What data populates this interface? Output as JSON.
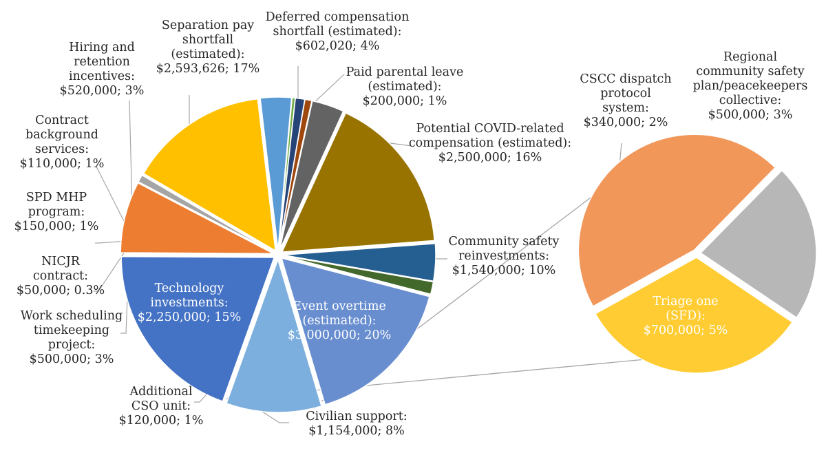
{
  "chart_data": {
    "type": "pie",
    "subtype": "pie-of-pie",
    "title": "",
    "legend": "none",
    "series": [
      {
        "name": "",
        "slices": [
          {
            "label": "Deferred compensation shortfall (estimated)",
            "value": 602020,
            "percent": 4,
            "color": "#255e91",
            "text": [
              "Deferred compensation",
              "shortfall (estimated):",
              "$602,020; 4%"
            ]
          },
          {
            "label": "Paid parental leave (estimated)",
            "value": 200000,
            "percent": 1,
            "color": "#43682b",
            "text": [
              "Paid parental leave",
              "(estimated):",
              "$200,000; 1%"
            ]
          },
          {
            "label": "Potential COVID-related compensation (estimated)",
            "value": 2500000,
            "percent": 16,
            "color": "#698ed0",
            "text": [
              "Potential COVID-related",
              "compensation (estimated):",
              "$2,500,000; 16%"
            ]
          },
          {
            "label": "Community safety reinvestments",
            "value": 1540000,
            "percent": 10,
            "color": "#7cafdd",
            "text": [
              "Community safety",
              "reinvestments:",
              "$1,540,000; 10%"
            ]
          },
          {
            "label": "Event overtime (estimated)",
            "value": 3000000,
            "percent": 20,
            "color": "#4472c4",
            "text": [
              "Event overtime",
              "(estimated):",
              "$3,000,000; 20%"
            ]
          },
          {
            "label": "Civilian support",
            "value": 1154000,
            "percent": 8,
            "color": "#ed7d31",
            "text": [
              "Civilian support:",
              "$1,154,000; 8%"
            ]
          },
          {
            "label": "Additional CSO unit",
            "value": 120000,
            "percent": 1,
            "color": "#a5a5a5",
            "text": [
              "Additional",
              "CSO unit:",
              "$120,000; 1%"
            ]
          },
          {
            "label": "Technology investments",
            "value": 2250000,
            "percent": 15,
            "color": "#ffc000",
            "text": [
              "Technology",
              "investments:",
              "$2,250,000; 15%"
            ]
          },
          {
            "label": "Work scheduling timekeeping project",
            "value": 500000,
            "percent": 3,
            "color": "#5b9bd5",
            "text": [
              "Work scheduling",
              "timekeeping",
              "project:",
              "$500,000; 3%"
            ]
          },
          {
            "label": "NICJR contract",
            "value": 50000,
            "percent": 0.3,
            "color": "#70ad47",
            "text": [
              "NICJR",
              "contract:",
              "$50,000; 0.3%"
            ]
          },
          {
            "label": "SPD MHP program",
            "value": 150000,
            "percent": 1,
            "color": "#264478",
            "text": [
              "SPD MHP",
              "program:",
              "$150,000; 1%"
            ]
          },
          {
            "label": "Contract background services",
            "value": 110000,
            "percent": 1,
            "color": "#9e480e",
            "text": [
              "Contract",
              "background",
              "services:",
              "$110,000; 1%"
            ]
          },
          {
            "label": "Hiring and retention incentives",
            "value": 520000,
            "percent": 3,
            "color": "#636363",
            "text": [
              "Hiring and",
              "retention",
              "incentives:",
              "$520,000; 3%"
            ]
          },
          {
            "label": "Separation pay shortfall (estimated)",
            "value": 2593626,
            "percent": 17,
            "color": "#997300",
            "text": [
              "Separation pay",
              "shortfall",
              "(estimated):",
              "$2,593,626; 17%"
            ]
          }
        ]
      },
      {
        "name": "",
        "slices": [
          {
            "label": "Regional community safety plan/peacekeepers collective",
            "value": 500000,
            "percent": 3,
            "color": "#ffcd33",
            "text": [
              "Regional",
              "community safety",
              "plan/peacekeepers",
              "collective:",
              "$500,000; 3%"
            ]
          },
          {
            "label": "Triage one (SFD)",
            "value": 700000,
            "percent": 5,
            "color": "#f1975a",
            "text": [
              "Triage one",
              "(SFD):",
              "$700,000; 5%"
            ]
          },
          {
            "label": "CSCC dispatch protocol system",
            "value": 340000,
            "percent": 2,
            "color": "#b7b7b7",
            "text": [
              "CSCC dispatch",
              "protocol",
              "system:",
              "$340,000; 2%"
            ]
          }
        ]
      }
    ]
  }
}
